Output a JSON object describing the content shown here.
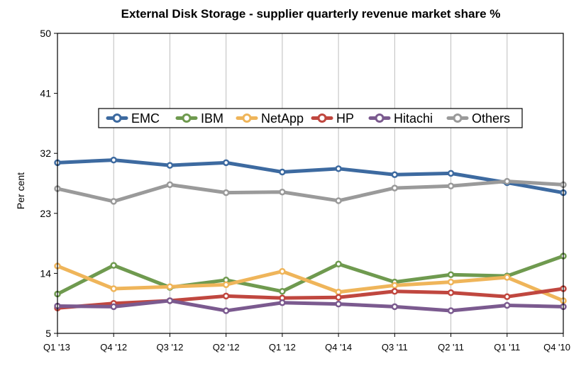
{
  "chart_data": {
    "type": "line",
    "title": "External Disk Storage - supplier quarterly revenue market share %",
    "ylabel": "Per cent",
    "xlabel": "",
    "ylim": [
      5,
      50
    ],
    "yticks": [
      "50",
      "41",
      "32",
      "23",
      "14",
      "5"
    ],
    "ytick_values": [
      50,
      41,
      32,
      23,
      14,
      5
    ],
    "categories": [
      "Q1 '13",
      "Q4 '12",
      "Q3 '12",
      "Q2 '12",
      "Q1 '12",
      "Q4 '14",
      "Q3 '11",
      "Q2 '11",
      "Q1 '11",
      "Q4 '10"
    ],
    "grid": "vertical",
    "legend_position": "center",
    "series": [
      {
        "name": "EMC",
        "color": "#3d6aa0",
        "values": [
          30.6,
          31.0,
          30.2,
          30.6,
          29.2,
          29.7,
          28.8,
          29.0,
          27.6,
          26.1
        ]
      },
      {
        "name": "IBM",
        "color": "#6f9a4f",
        "values": [
          10.9,
          15.2,
          11.9,
          13.0,
          11.3,
          15.4,
          12.7,
          13.8,
          13.6,
          16.6
        ]
      },
      {
        "name": "NetApp",
        "color": "#efb55a",
        "values": [
          15.1,
          11.7,
          12.0,
          12.3,
          14.3,
          11.2,
          12.2,
          12.7,
          13.4,
          9.9
        ]
      },
      {
        "name": "HP",
        "color": "#c0473f",
        "values": [
          8.8,
          9.5,
          9.9,
          10.6,
          10.3,
          10.4,
          11.3,
          11.1,
          10.5,
          11.7
        ]
      },
      {
        "name": "Hitachi",
        "color": "#7b5a8f",
        "values": [
          9.1,
          9.0,
          9.9,
          8.4,
          9.6,
          9.4,
          9.0,
          8.4,
          9.2,
          9.0
        ]
      },
      {
        "name": "Others",
        "color": "#9a9a9a",
        "values": [
          26.7,
          24.8,
          27.3,
          26.1,
          26.2,
          24.9,
          26.8,
          27.1,
          27.8,
          27.3
        ]
      }
    ]
  }
}
